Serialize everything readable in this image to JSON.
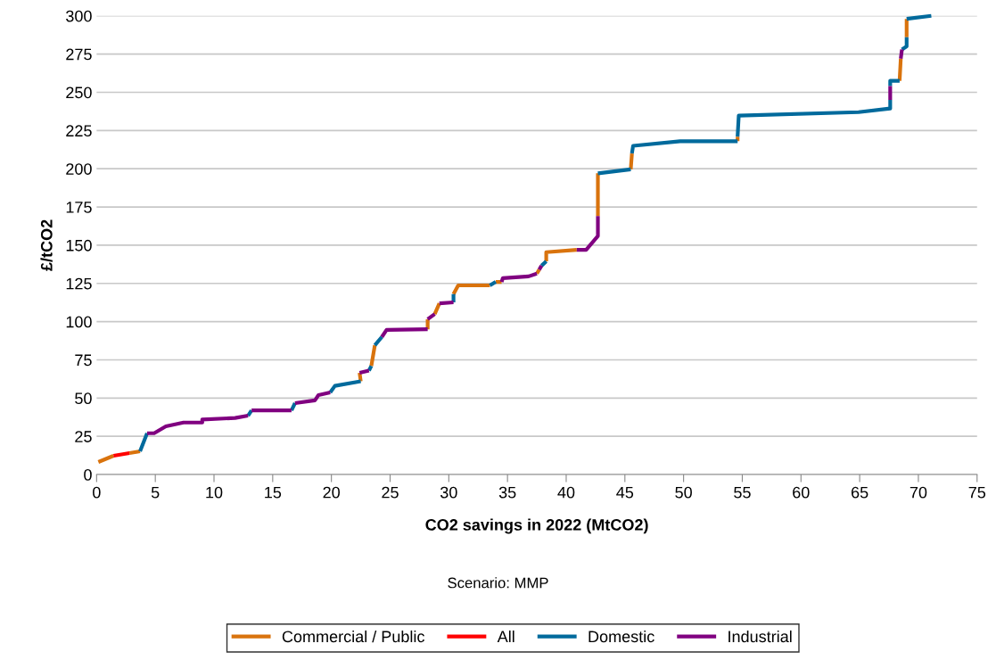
{
  "chart_data": {
    "type": "line",
    "xlabel": "CO2 savings in 2022 (MtCO2)",
    "ylabel": "£/tCO2",
    "annotations": [
      "Scenario: MMP"
    ],
    "xlim": [
      0,
      75
    ],
    "xticks": [
      0,
      5,
      10,
      15,
      20,
      25,
      30,
      35,
      40,
      45,
      50,
      55,
      60,
      65,
      70,
      75
    ],
    "ylim": [
      0,
      300
    ],
    "yticks": [
      0,
      25,
      50,
      75,
      100,
      125,
      150,
      175,
      200,
      225,
      250,
      275,
      300
    ],
    "grid": "y",
    "legend": "bottom",
    "marker": "none",
    "line_style": "solid",
    "series": [
      {
        "name": "Commercial / Public",
        "color": "#d9730d",
        "x": [
          0.15,
          1.44,
          null,
          2.8,
          3.7,
          null,
          22.5,
          22.4,
          null,
          23.4,
          23.7,
          null,
          28.2,
          28.2,
          null,
          28.8,
          29.2,
          null,
          30.4,
          30.8,
          33.5,
          null,
          34.0,
          34.5,
          null,
          37.5,
          37.7,
          null,
          38.3,
          38.3,
          40.9,
          null,
          42.7,
          42.7,
          null,
          45.5,
          45.6,
          null,
          54.6,
          54.6,
          null,
          68.4,
          68.5,
          null,
          69.0,
          69.0
        ],
        "values": [
          8.2,
          12.3,
          null,
          14,
          15.2,
          null,
          61,
          66.5,
          null,
          71,
          84.6,
          null,
          95,
          101.6,
          null,
          105,
          112,
          null,
          118,
          123.7,
          123.7,
          null,
          126,
          126,
          null,
          131.4,
          134,
          null,
          139.5,
          145.4,
          147,
          null,
          169,
          197,
          null,
          199.6,
          210,
          null,
          218,
          221,
          null,
          257.5,
          272,
          null,
          286,
          298
        ]
      },
      {
        "name": "All",
        "color": "#ff0000",
        "x": [
          1.44,
          2.8
        ],
        "values": [
          12.3,
          14
        ]
      },
      {
        "name": "Domestic",
        "color": "#006a9c",
        "x": [
          3.7,
          4.3,
          null,
          12.9,
          13.2,
          null,
          16.6,
          16.9,
          null,
          19.9,
          20.3,
          22.5,
          null,
          23.2,
          23.4,
          null,
          23.7,
          24.3,
          null,
          30.4,
          30.4,
          null,
          33.5,
          34.0,
          null,
          37.9,
          38.3,
          null,
          42.7,
          45.5,
          null,
          45.6,
          45.7,
          49.7,
          54.6,
          null,
          54.6,
          54.7,
          64.9,
          67.6,
          67.6,
          null,
          67.6,
          67.6,
          68.4,
          null,
          68.6,
          69.0,
          69.0,
          null,
          69.0,
          71.1
        ],
        "values": [
          15.2,
          27,
          null,
          38.5,
          42,
          null,
          42,
          46.7,
          null,
          53.7,
          58,
          61,
          null,
          68,
          71,
          null,
          84.6,
          90,
          null,
          112.6,
          118,
          null,
          123.7,
          126,
          null,
          136.6,
          139.5,
          null,
          197,
          199.6,
          null,
          210,
          215,
          218,
          218,
          null,
          221,
          234.7,
          237,
          239.4,
          245,
          null,
          254,
          257.5,
          257.5,
          null,
          278,
          280,
          286,
          null,
          298,
          300
        ]
      },
      {
        "name": "Industrial",
        "color": "#800080",
        "x": [
          4.3,
          4.9,
          5.9,
          7.4,
          9.0,
          9.0,
          11.8,
          12.9,
          null,
          13.2,
          16.6,
          null,
          16.9,
          18.6,
          18.9,
          19.9,
          null,
          22.4,
          23.2,
          null,
          24.3,
          24.7,
          28.2,
          null,
          28.2,
          28.8,
          null,
          29.2,
          30.4,
          null,
          34.5,
          34.6,
          36.8,
          37.5,
          null,
          37.7,
          37.9,
          null,
          40.9,
          41.7,
          42.7,
          42.7,
          null,
          67.6,
          67.6,
          null,
          68.5,
          68.6
        ],
        "values": [
          27,
          27,
          31.5,
          34,
          34,
          36,
          37,
          38.5,
          null,
          42,
          42,
          null,
          46.7,
          48.5,
          52,
          53.7,
          null,
          66.5,
          68,
          null,
          90,
          94.6,
          95,
          null,
          101.6,
          105,
          null,
          112,
          112.6,
          null,
          126,
          128.4,
          129.6,
          131.4,
          null,
          134,
          136.6,
          null,
          147,
          147,
          156,
          169,
          null,
          245,
          254,
          null,
          272,
          278
        ]
      }
    ]
  }
}
